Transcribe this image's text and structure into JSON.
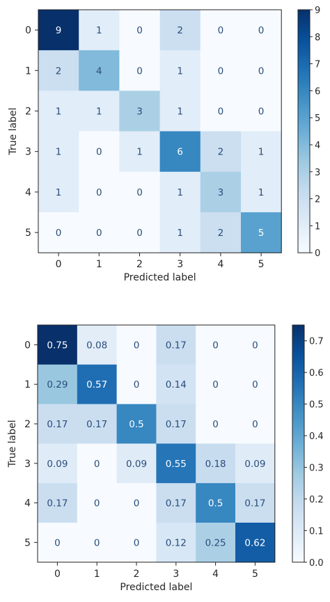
{
  "chart_data": [
    {
      "type": "heatmap",
      "x_categories": [
        "0",
        "1",
        "2",
        "3",
        "4",
        "5"
      ],
      "y_categories": [
        "0",
        "1",
        "2",
        "3",
        "4",
        "5"
      ],
      "values": [
        [
          9,
          1,
          0,
          2,
          0,
          0
        ],
        [
          2,
          4,
          0,
          1,
          0,
          0
        ],
        [
          1,
          1,
          3,
          1,
          0,
          0
        ],
        [
          1,
          0,
          1,
          6,
          2,
          1
        ],
        [
          1,
          0,
          0,
          1,
          3,
          1
        ],
        [
          0,
          0,
          0,
          1,
          2,
          5
        ]
      ],
      "cell_labels": [
        [
          "9",
          "1",
          "0",
          "2",
          "0",
          "0"
        ],
        [
          "2",
          "4",
          "0",
          "1",
          "0",
          "0"
        ],
        [
          "1",
          "1",
          "3",
          "1",
          "0",
          "0"
        ],
        [
          "1",
          "0",
          "1",
          "6",
          "2",
          "1"
        ],
        [
          "1",
          "0",
          "0",
          "1",
          "3",
          "1"
        ],
        [
          "0",
          "0",
          "0",
          "1",
          "2",
          "5"
        ]
      ],
      "xlabel": "Predicted label",
      "ylabel": "True label",
      "colormap": "Blues",
      "color_range": [
        0,
        9
      ],
      "colorbar_ticks": [
        "0",
        "1",
        "2",
        "3",
        "4",
        "5",
        "6",
        "7",
        "8",
        "9"
      ],
      "colorbar_values": [
        0,
        1,
        2,
        3,
        4,
        5,
        6,
        7,
        8,
        9
      ],
      "colorbar_position": "right"
    },
    {
      "type": "heatmap",
      "x_categories": [
        "0",
        "1",
        "2",
        "3",
        "4",
        "5"
      ],
      "y_categories": [
        "0",
        "1",
        "2",
        "3",
        "4",
        "5"
      ],
      "values": [
        [
          0.75,
          0.08,
          0,
          0.17,
          0,
          0
        ],
        [
          0.29,
          0.57,
          0,
          0.14,
          0,
          0
        ],
        [
          0.17,
          0.17,
          0.5,
          0.17,
          0,
          0
        ],
        [
          0.09,
          0,
          0.09,
          0.55,
          0.18,
          0.09
        ],
        [
          0.17,
          0,
          0,
          0.17,
          0.5,
          0.17
        ],
        [
          0,
          0,
          0,
          0.12,
          0.25,
          0.62
        ]
      ],
      "cell_labels": [
        [
          "0.75",
          "0.08",
          "0",
          "0.17",
          "0",
          "0"
        ],
        [
          "0.29",
          "0.57",
          "0",
          "0.14",
          "0",
          "0"
        ],
        [
          "0.17",
          "0.17",
          "0.5",
          "0.17",
          "0",
          "0"
        ],
        [
          "0.09",
          "0",
          "0.09",
          "0.55",
          "0.18",
          "0.09"
        ],
        [
          "0.17",
          "0",
          "0",
          "0.17",
          "0.5",
          "0.17"
        ],
        [
          "0",
          "0",
          "0",
          "0.12",
          "0.25",
          "0.62"
        ]
      ],
      "xlabel": "Predicted label",
      "ylabel": "True label",
      "colormap": "Blues",
      "color_range": [
        0,
        0.75
      ],
      "colorbar_ticks": [
        "0.0",
        "0.1",
        "0.2",
        "0.3",
        "0.4",
        "0.5",
        "0.6",
        "0.7"
      ],
      "colorbar_values": [
        0,
        0.1,
        0.2,
        0.3,
        0.4,
        0.5,
        0.6,
        0.7
      ],
      "colorbar_position": "right"
    }
  ]
}
